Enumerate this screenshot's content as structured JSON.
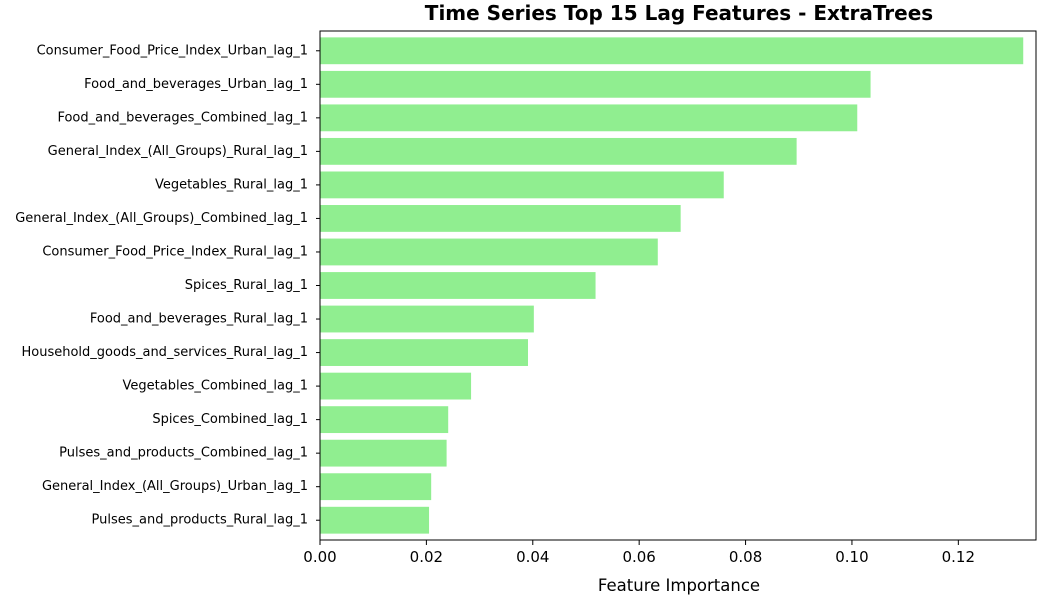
{
  "chart_data": {
    "type": "bar",
    "orientation": "horizontal",
    "title": "Time Series Top 15 Lag Features - ExtraTrees",
    "xlabel": "Feature Importance",
    "ylabel": "",
    "xlim": [
      0,
      0.1346
    ],
    "xticks": [
      0.0,
      0.02,
      0.04,
      0.06,
      0.08,
      0.1,
      0.12
    ],
    "xtick_labels": [
      "0.00",
      "0.02",
      "0.04",
      "0.06",
      "0.08",
      "0.10",
      "0.12"
    ],
    "grid": false,
    "legend": "none",
    "bar_color": "#90EE90",
    "categories": [
      "Consumer_Food_Price_Index_Urban_lag_1",
      "Food_and_beverages_Urban_lag_1",
      "Food_and_beverages_Combined_lag_1",
      "General_Index_(All_Groups)_Rural_lag_1",
      "Vegetables_Rural_lag_1",
      "General_Index_(All_Groups)_Combined_lag_1",
      "Consumer_Food_Price_Index_Rural_lag_1",
      "Spices_Rural_lag_1",
      "Food_and_beverages_Rural_lag_1",
      "Household_goods_and_services_Rural_lag_1",
      "Vegetables_Combined_lag_1",
      "Spices_Combined_lag_1",
      "Pulses_and_products_Combined_lag_1",
      "General_Index_(All_Groups)_Urban_lag_1",
      "Pulses_and_products_Rural_lag_1"
    ],
    "values": [
      0.1322,
      0.1035,
      0.101,
      0.0896,
      0.0759,
      0.0678,
      0.0635,
      0.0518,
      0.0402,
      0.0391,
      0.0284,
      0.0241,
      0.0238,
      0.0209,
      0.0205
    ]
  }
}
